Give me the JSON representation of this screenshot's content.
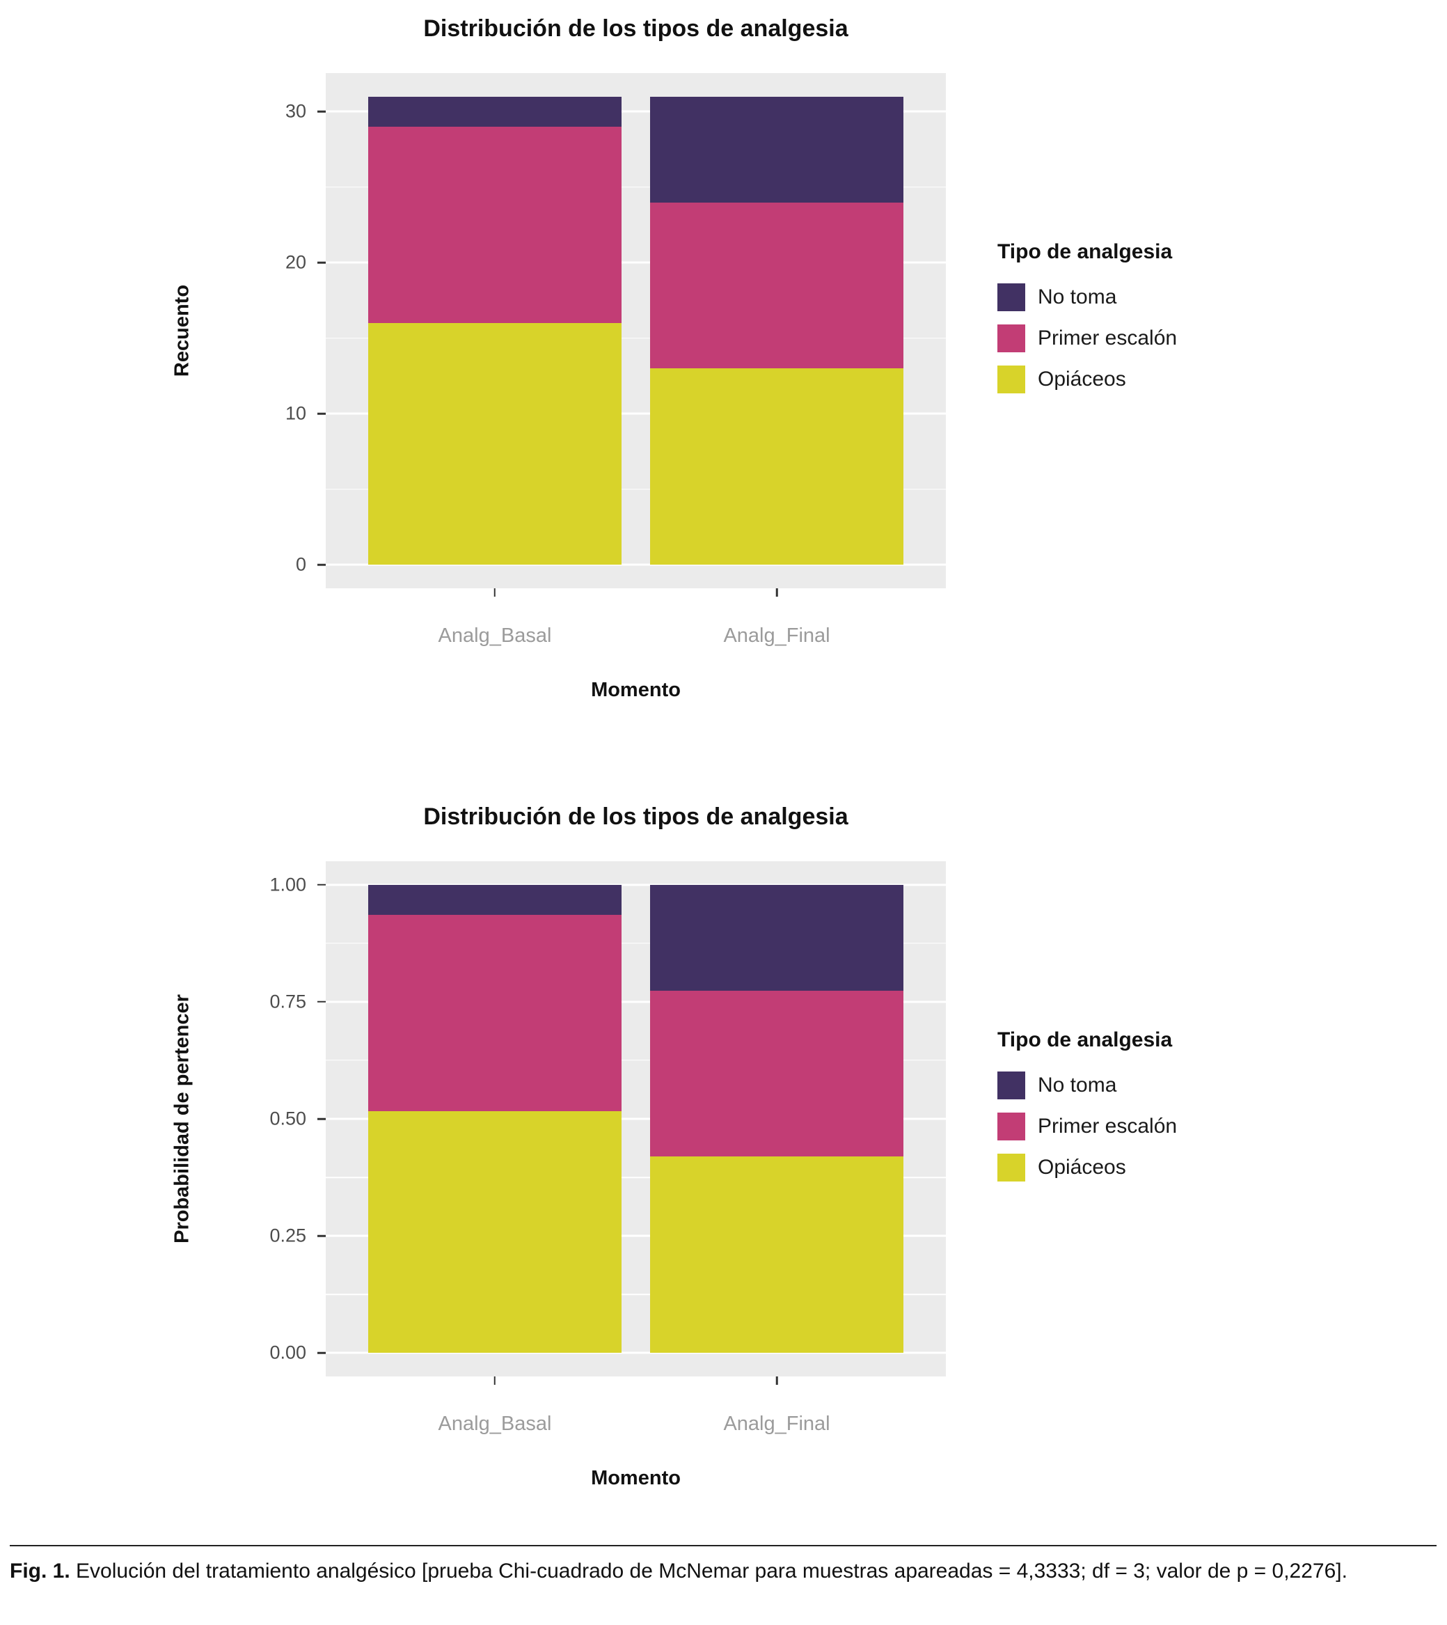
{
  "colors": {
    "no_toma": "#413163",
    "primer": "#C23D75",
    "opiaceos": "#D8D32A",
    "panel_bg": "#EBEBEB",
    "grid": "#FFFFFF",
    "y_tick_text": "#4D4D4D",
    "x_tick_text": "#9B9B9B",
    "tick_mark": "#333333"
  },
  "chart_data": [
    {
      "type": "bar",
      "stacked": true,
      "title": "Distribución de los tipos de analgesia",
      "xlabel": "Momento",
      "ylabel": "Recuento",
      "legend_title": "Tipo de analgesia",
      "legend_position": "right",
      "grid": true,
      "categories": [
        "Analg_Basal",
        "Analg_Final"
      ],
      "series": [
        {
          "name": "No toma",
          "color_key": "no_toma",
          "values": [
            2,
            7
          ]
        },
        {
          "name": "Primer escalón",
          "color_key": "primer",
          "values": [
            13,
            11
          ]
        },
        {
          "name": "Opiáceos",
          "color_key": "opiaceos",
          "values": [
            16,
            13
          ]
        }
      ],
      "totals": [
        31,
        31
      ],
      "ylim": [
        0,
        31
      ],
      "yticks": [
        "0",
        "10",
        "20",
        "30"
      ]
    },
    {
      "type": "bar",
      "stacked": true,
      "title": "Distribución de los tipos de analgesia",
      "xlabel": "Momento",
      "ylabel": "Probabilidad de pertencer",
      "legend_title": "Tipo de analgesia",
      "legend_position": "right",
      "grid": true,
      "categories": [
        "Analg_Basal",
        "Analg_Final"
      ],
      "series": [
        {
          "name": "No toma",
          "color_key": "no_toma",
          "values": [
            0.0645,
            0.2258
          ]
        },
        {
          "name": "Primer escalón",
          "color_key": "primer",
          "values": [
            0.4194,
            0.3548
          ]
        },
        {
          "name": "Opiáceos",
          "color_key": "opiaceos",
          "values": [
            0.5161,
            0.4194
          ]
        }
      ],
      "totals": [
        1.0,
        1.0
      ],
      "ylim": [
        0,
        1
      ],
      "yticks": [
        "0.00",
        "0.25",
        "0.50",
        "0.75",
        "1.00"
      ]
    }
  ],
  "caption": {
    "prefix": "Fig. 1.",
    "text": " Evolución del tratamiento analgésico [prueba Chi-cuadrado de McNemar para muestras apareadas = 4,3333; df = 3; valor de p = 0,2276]."
  }
}
